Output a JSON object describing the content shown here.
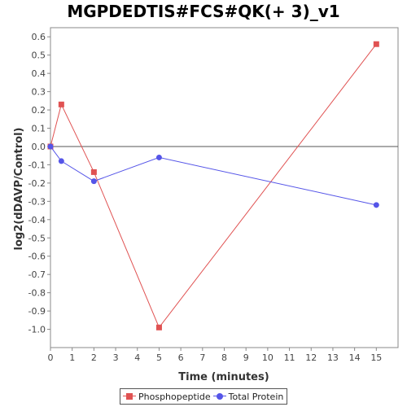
{
  "chart_data": {
    "type": "line",
    "title": "MGPDEDTIS#FCS#QK(+ 3)_v1",
    "xlabel": "Time (minutes)",
    "ylabel": "log2(dDAVP/Control)",
    "xlim": [
      0,
      16
    ],
    "ylim": [
      -1.1,
      0.65
    ],
    "xticks": [
      0,
      1,
      2,
      3,
      4,
      5,
      6,
      7,
      8,
      9,
      10,
      11,
      12,
      13,
      14,
      15
    ],
    "yticks": [
      0.6,
      0.5,
      0.4,
      0.3,
      0.2,
      0.1,
      0.0,
      -0.1,
      -0.2,
      -0.3,
      -0.4,
      -0.5,
      -0.6,
      -0.7,
      -0.8,
      -0.9,
      -1.0
    ],
    "ytick_labels": [
      "0.6",
      "0.5",
      "0.4",
      "0.3",
      "0.2",
      "0.1",
      "0.0",
      "-0.1",
      "-0.2",
      "-0.3",
      "-0.4",
      "-0.5",
      "-0.6",
      "-0.7",
      "-0.8",
      "-0.9",
      "-1.0"
    ],
    "zero_line": true,
    "grid": false,
    "legend_position": "bottom",
    "series": [
      {
        "name": "Phosphopeptide",
        "color": "#e05252",
        "marker": "square",
        "x": [
          0,
          0.5,
          2,
          5,
          15
        ],
        "y": [
          0.0,
          0.23,
          -0.14,
          -0.99,
          0.56
        ]
      },
      {
        "name": "Total Protein",
        "color": "#5555e8",
        "marker": "circle",
        "x": [
          0,
          0.5,
          2,
          5,
          15
        ],
        "y": [
          0.0,
          -0.08,
          -0.19,
          -0.06,
          -0.32
        ]
      }
    ]
  }
}
